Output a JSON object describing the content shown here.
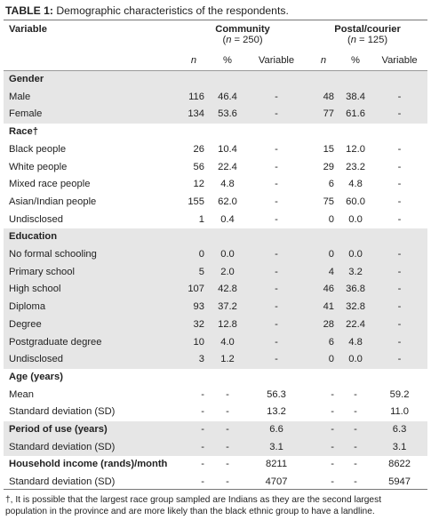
{
  "caption": {
    "label": "TABLE 1:",
    "text": "Demographic characteristics of the respondents."
  },
  "header": {
    "variable": "Variable",
    "community": {
      "name": "Community",
      "n_label": "(n = 250)"
    },
    "postal": {
      "name": "Postal/courier",
      "n_label": "(n = 125)"
    },
    "sub": {
      "n": "n",
      "pct": "%",
      "var": "Variable"
    }
  },
  "rows": [
    {
      "type": "section",
      "label": "Gender",
      "shade": true,
      "v": [
        "",
        "",
        "",
        "",
        "",
        ""
      ]
    },
    {
      "type": "data",
      "label": "Male",
      "shade": true,
      "v": [
        "116",
        "46.4",
        "-",
        "48",
        "38.4",
        "-"
      ]
    },
    {
      "type": "data",
      "label": "Female",
      "shade": true,
      "v": [
        "134",
        "53.6",
        "-",
        "77",
        "61.6",
        "-"
      ]
    },
    {
      "type": "section",
      "label": "Race†",
      "shade": false,
      "v": [
        "",
        "",
        "",
        "",
        "",
        ""
      ]
    },
    {
      "type": "data",
      "label": "Black people",
      "shade": false,
      "v": [
        "26",
        "10.4",
        "-",
        "15",
        "12.0",
        "-"
      ]
    },
    {
      "type": "data",
      "label": "White people",
      "shade": false,
      "v": [
        "56",
        "22.4",
        "-",
        "29",
        "23.2",
        "-"
      ]
    },
    {
      "type": "data",
      "label": "Mixed race people",
      "shade": false,
      "v": [
        "12",
        "4.8",
        "-",
        "6",
        "4.8",
        "-"
      ]
    },
    {
      "type": "data",
      "label": "Asian/Indian people",
      "shade": false,
      "v": [
        "155",
        "62.0",
        "-",
        "75",
        "60.0",
        "-"
      ]
    },
    {
      "type": "data",
      "label": "Undisclosed",
      "shade": false,
      "v": [
        "1",
        "0.4",
        "-",
        "0",
        "0.0",
        "-"
      ]
    },
    {
      "type": "section",
      "label": "Education",
      "shade": true,
      "v": [
        "",
        "",
        "",
        "",
        "",
        ""
      ]
    },
    {
      "type": "data",
      "label": "No formal schooling",
      "shade": true,
      "v": [
        "0",
        "0.0",
        "-",
        "0",
        "0.0",
        "-"
      ]
    },
    {
      "type": "data",
      "label": "Primary school",
      "shade": true,
      "v": [
        "5",
        "2.0",
        "-",
        "4",
        "3.2",
        "-"
      ]
    },
    {
      "type": "data",
      "label": "High school",
      "shade": true,
      "v": [
        "107",
        "42.8",
        "-",
        "46",
        "36.8",
        "-"
      ]
    },
    {
      "type": "data",
      "label": "Diploma",
      "shade": true,
      "v": [
        "93",
        "37.2",
        "-",
        "41",
        "32.8",
        "-"
      ]
    },
    {
      "type": "data",
      "label": "Degree",
      "shade": true,
      "v": [
        "32",
        "12.8",
        "-",
        "28",
        "22.4",
        "-"
      ]
    },
    {
      "type": "data",
      "label": "Postgraduate degree",
      "shade": true,
      "v": [
        "10",
        "4.0",
        "-",
        "6",
        "4.8",
        "-"
      ]
    },
    {
      "type": "data",
      "label": "Undisclosed",
      "shade": true,
      "v": [
        "3",
        "1.2",
        "-",
        "0",
        "0.0",
        "-"
      ]
    },
    {
      "type": "section",
      "label": "Age (years)",
      "shade": false,
      "v": [
        "",
        "",
        "",
        "",
        "",
        ""
      ]
    },
    {
      "type": "data",
      "label": "Mean",
      "shade": false,
      "v": [
        "-",
        "-",
        "56.3",
        "-",
        "-",
        "59.2"
      ]
    },
    {
      "type": "data",
      "label": "Standard deviation (SD)",
      "shade": false,
      "v": [
        "-",
        "-",
        "13.2",
        "-",
        "-",
        "11.0"
      ]
    },
    {
      "type": "section",
      "label": "Period of use (years)",
      "shade": true,
      "v": [
        "-",
        "-",
        "6.6",
        "-",
        "-",
        "6.3"
      ]
    },
    {
      "type": "data",
      "label": "Standard deviation (SD)",
      "shade": true,
      "v": [
        "-",
        "-",
        "3.1",
        "-",
        "-",
        "3.1"
      ]
    },
    {
      "type": "section",
      "label": "Household income (rands)/month",
      "shade": false,
      "v": [
        "-",
        "-",
        "8211",
        "-",
        "-",
        "8622"
      ]
    },
    {
      "type": "data",
      "label": "Standard deviation (SD)",
      "shade": false,
      "v": [
        "-",
        "-",
        "4707",
        "-",
        "-",
        "5947"
      ]
    }
  ],
  "footnote": "†, It is possible that the largest race group sampled are Indians as they are the second largest population in the province and are more likely than the black ethnic group to have a landline."
}
